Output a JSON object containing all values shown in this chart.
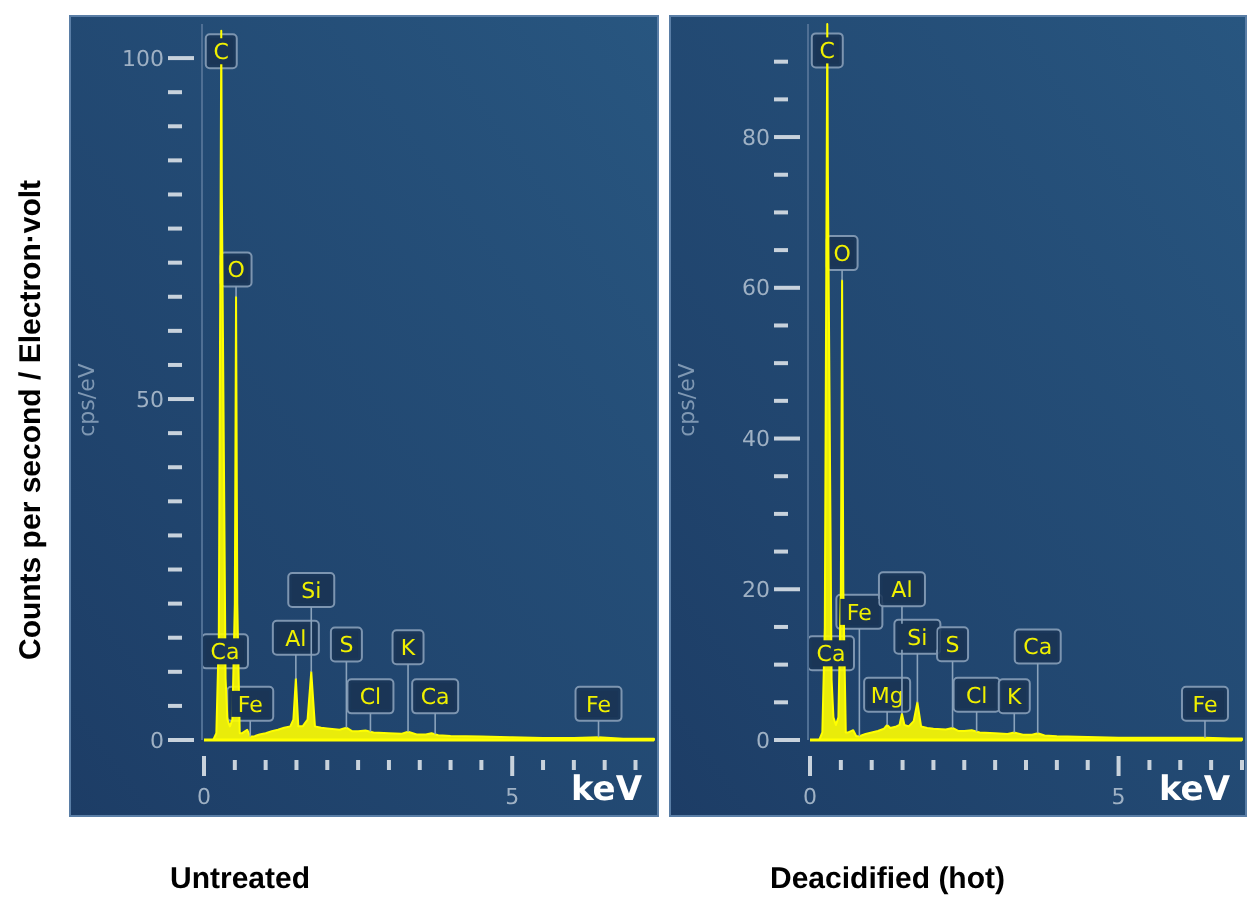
{
  "chart_data": [
    {
      "type": "area",
      "title": "Untreated",
      "xlabel": "keV",
      "ylabel": "cps/eV",
      "xlim": [
        0,
        7.3
      ],
      "ylim": [
        0,
        105
      ],
      "xticks": [
        {
          "value": 0,
          "label": "0"
        },
        {
          "value": 0.5,
          "label": null
        },
        {
          "value": 1,
          "label": null
        },
        {
          "value": 1.5,
          "label": null
        },
        {
          "value": 2,
          "label": null
        },
        {
          "value": 2.5,
          "label": null
        },
        {
          "value": 3,
          "label": null
        },
        {
          "value": 3.5,
          "label": null
        },
        {
          "value": 4,
          "label": null
        },
        {
          "value": 4.5,
          "label": null
        },
        5,
        {
          "value": 5.5,
          "label": null
        },
        {
          "value": 6,
          "label": null
        },
        {
          "value": 6.5,
          "label": null
        },
        {
          "value": 7,
          "label": null
        }
      ],
      "yticks": [
        {
          "value": 0,
          "label": "0"
        },
        {
          "value": 5,
          "label": null
        },
        {
          "value": 10,
          "label": null
        },
        {
          "value": 15,
          "label": null
        },
        {
          "value": 20,
          "label": null
        },
        {
          "value": 25,
          "label": null
        },
        {
          "value": 30,
          "label": null
        },
        {
          "value": 35,
          "label": null
        },
        {
          "value": 40,
          "label": null
        },
        {
          "value": 45,
          "label": null
        },
        50,
        {
          "value": 55,
          "label": null
        },
        {
          "value": 60,
          "label": null
        },
        {
          "value": 65,
          "label": null
        },
        {
          "value": 70,
          "label": null
        },
        {
          "value": 75,
          "label": null
        },
        {
          "value": 80,
          "label": null
        },
        {
          "value": 85,
          "label": null
        },
        {
          "value": 90,
          "label": null
        },
        {
          "value": 95,
          "label": null
        },
        100
      ],
      "series": [
        {
          "color": "#ffff00",
          "x": [
            0.1,
            0.15,
            0.2,
            0.24,
            0.27,
            0.28,
            0.29,
            0.35,
            0.38,
            0.42,
            0.46,
            0.5,
            0.52,
            0.54,
            0.58,
            0.62,
            0.7,
            0.75,
            0.8,
            0.9,
            1.0,
            1.1,
            1.2,
            1.3,
            1.4,
            1.45,
            1.49,
            1.53,
            1.6,
            1.68,
            1.74,
            1.8,
            1.9,
            2.0,
            2.2,
            2.31,
            2.4,
            2.5,
            2.62,
            2.75,
            3.0,
            3.2,
            3.31,
            3.45,
            3.6,
            3.69,
            3.8,
            4.0,
            4.5,
            5.0,
            5.5,
            6.0,
            6.4,
            6.8,
            7.3
          ],
          "values": [
            0,
            0,
            1,
            15,
            80,
            104,
            80,
            9,
            3,
            2,
            3,
            20,
            65,
            20,
            1,
            1,
            1.5,
            0.5,
            0.5,
            0.8,
            1,
            1.3,
            1.5,
            1.8,
            2,
            3,
            9,
            2,
            2,
            3,
            10,
            2,
            1.8,
            1.7,
            1.5,
            1.8,
            1.3,
            1.3,
            1.4,
            1.1,
            1,
            0.9,
            1.2,
            0.8,
            0.8,
            1,
            0.7,
            0.6,
            0.5,
            0.4,
            0.3,
            0.3,
            0.4,
            0.2,
            0.2
          ]
        }
      ],
      "annotations": [
        "Counts per second / Electron·volt",
        {
          "text": "C",
          "x": 0.28,
          "y": 101
        },
        {
          "text": "O",
          "x": 0.52,
          "y": 69
        },
        {
          "text": "Ca",
          "x": 0.34,
          "y": 13
        },
        {
          "text": "Fe",
          "x": 0.75,
          "y": 5.3
        },
        {
          "text": "Al",
          "x": 1.49,
          "y": 15
        },
        {
          "text": "Si",
          "x": 1.74,
          "y": 22
        },
        {
          "text": "S",
          "x": 2.31,
          "y": 14
        },
        {
          "text": "Cl",
          "x": 2.7,
          "y": 6.4
        },
        {
          "text": "K",
          "x": 3.31,
          "y": 13.6
        },
        {
          "text": "Ca",
          "x": 3.75,
          "y": 6.4
        },
        {
          "text": "Fe",
          "x": 6.4,
          "y": 5.3
        }
      ]
    },
    {
      "type": "area",
      "title": "Deacidified (hot)",
      "xlabel": "keV",
      "ylabel": "cps/eV",
      "xlim": [
        0,
        7.0
      ],
      "ylim": [
        0,
        95
      ],
      "xticks": [
        {
          "value": 0,
          "label": "0"
        },
        {
          "value": 0.5,
          "label": null
        },
        {
          "value": 1,
          "label": null
        },
        {
          "value": 1.5,
          "label": null
        },
        {
          "value": 2,
          "label": null
        },
        {
          "value": 2.5,
          "label": null
        },
        {
          "value": 3,
          "label": null
        },
        {
          "value": 3.5,
          "label": null
        },
        {
          "value": 4,
          "label": null
        },
        {
          "value": 4.5,
          "label": null
        },
        5,
        {
          "value": 5.5,
          "label": null
        },
        {
          "value": 6,
          "label": null
        },
        {
          "value": 6.5,
          "label": null
        },
        {
          "value": 7,
          "label": null
        }
      ],
      "yticks": [
        {
          "value": 0,
          "label": "0"
        },
        {
          "value": 5,
          "label": null
        },
        {
          "value": 10,
          "label": null
        },
        {
          "value": 15,
          "label": null
        },
        20,
        {
          "value": 25,
          "label": null
        },
        {
          "value": 30,
          "label": null
        },
        {
          "value": 35,
          "label": null
        },
        40,
        {
          "value": 45,
          "label": null
        },
        {
          "value": 50,
          "label": null
        },
        {
          "value": 55,
          "label": null
        },
        60,
        {
          "value": 65,
          "label": null
        },
        {
          "value": 70,
          "label": null
        },
        {
          "value": 75,
          "label": null
        },
        80,
        {
          "value": 85,
          "label": null
        },
        {
          "value": 90,
          "label": null
        }
      ],
      "series": [
        {
          "color": "#ffff00",
          "x": [
            0.1,
            0.15,
            0.2,
            0.24,
            0.27,
            0.28,
            0.29,
            0.35,
            0.38,
            0.42,
            0.46,
            0.5,
            0.52,
            0.54,
            0.58,
            0.62,
            0.7,
            0.75,
            0.8,
            0.9,
            1.0,
            1.1,
            1.2,
            1.25,
            1.3,
            1.4,
            1.45,
            1.49,
            1.53,
            1.6,
            1.68,
            1.74,
            1.8,
            1.9,
            2.0,
            2.2,
            2.31,
            2.4,
            2.5,
            2.62,
            2.75,
            3.0,
            3.2,
            3.31,
            3.45,
            3.6,
            3.69,
            3.8,
            4.0,
            4.5,
            5.0,
            5.5,
            6.0,
            6.4,
            6.8,
            7.0
          ],
          "values": [
            0,
            0,
            1,
            15,
            75,
            95,
            75,
            8,
            3,
            2,
            3,
            20,
            61,
            20,
            1,
            1,
            1.3,
            0.5,
            0.5,
            0.8,
            1,
            1.2,
            1.5,
            2,
            1.6,
            1.8,
            2,
            3.5,
            2,
            1.8,
            2.5,
            5,
            1.8,
            1.6,
            1.5,
            1.4,
            1.6,
            1.2,
            1.2,
            1.3,
            1,
            0.9,
            0.8,
            1,
            0.7,
            0.7,
            0.9,
            0.6,
            0.5,
            0.4,
            0.3,
            0.3,
            0.3,
            0.3,
            0.2,
            0.2
          ]
        }
      ],
      "annotations": [
        {
          "text": "C",
          "x": 0.28,
          "y": 91.5
        },
        {
          "text": "O",
          "x": 0.52,
          "y": 64.6
        },
        {
          "text": "Ca",
          "x": 0.34,
          "y": 11.5
        },
        {
          "text": "Fe",
          "x": 0.8,
          "y": 17
        },
        {
          "text": "Mg",
          "x": 1.25,
          "y": 6
        },
        {
          "text": "Al",
          "x": 1.49,
          "y": 20
        },
        {
          "text": "Si",
          "x": 1.74,
          "y": 13.7
        },
        {
          "text": "S",
          "x": 2.31,
          "y": 12.7
        },
        {
          "text": "Cl",
          "x": 2.7,
          "y": 6
        },
        {
          "text": "K",
          "x": 3.31,
          "y": 5.8
        },
        {
          "text": "Ca",
          "x": 3.69,
          "y": 12.4
        },
        {
          "text": "Fe",
          "x": 6.4,
          "y": 4.8
        }
      ]
    }
  ]
}
